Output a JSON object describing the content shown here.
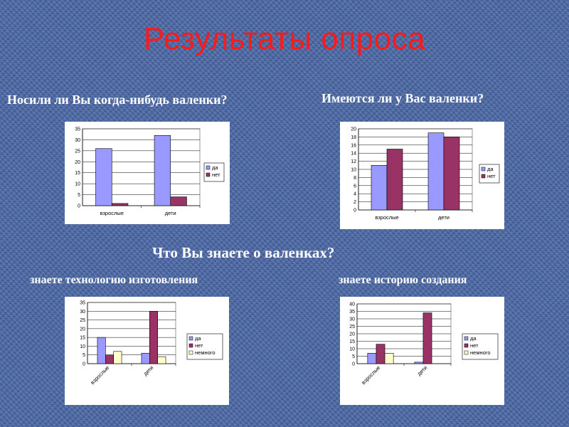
{
  "title": "Результаты опроса",
  "questions": {
    "q1": "Носили ли Вы когда-нибудь валенки?",
    "q2": "Имеются ли у Вас валенки?",
    "q3": "Что Вы знаете о валенках?",
    "q4": "знаете технологию изготовления",
    "q5": "знаете историю создания"
  },
  "colors": {
    "title": "#ff1a1a",
    "da": "#9999ff",
    "net": "#993366",
    "nemnogo": "#ffffcc"
  },
  "chart_data": [
    {
      "type": "bar",
      "title": "",
      "categories": [
        "взрослые",
        "дети"
      ],
      "series": [
        {
          "name": "да",
          "values": [
            26,
            32
          ]
        },
        {
          "name": "нет",
          "values": [
            1,
            4
          ]
        }
      ],
      "ylim": [
        0,
        35
      ],
      "ystep": 5,
      "grid": true,
      "legend": "right",
      "rotate_labels": false
    },
    {
      "type": "bar",
      "title": "",
      "categories": [
        "взрослые",
        "дети"
      ],
      "series": [
        {
          "name": "да",
          "values": [
            11,
            19
          ]
        },
        {
          "name": "нет",
          "values": [
            15,
            18
          ]
        }
      ],
      "ylim": [
        0,
        20
      ],
      "ystep": 2,
      "grid": true,
      "legend": "right",
      "rotate_labels": false
    },
    {
      "type": "bar",
      "title": "",
      "categories": [
        "взрослые",
        "дети"
      ],
      "series": [
        {
          "name": "да",
          "values": [
            15,
            6
          ]
        },
        {
          "name": "нет",
          "values": [
            5,
            30
          ]
        },
        {
          "name": "немного",
          "values": [
            7,
            4
          ]
        }
      ],
      "ylim": [
        0,
        35
      ],
      "ystep": 5,
      "grid": true,
      "legend": "right",
      "rotate_labels": true
    },
    {
      "type": "bar",
      "title": "",
      "categories": [
        "взрослые",
        "дети"
      ],
      "series": [
        {
          "name": "да",
          "values": [
            7,
            1
          ]
        },
        {
          "name": "нет",
          "values": [
            13,
            34
          ]
        },
        {
          "name": "немного",
          "values": [
            7,
            0
          ]
        }
      ],
      "ylim": [
        0,
        40
      ],
      "ystep": 5,
      "grid": true,
      "legend": "right",
      "rotate_labels": true
    }
  ]
}
